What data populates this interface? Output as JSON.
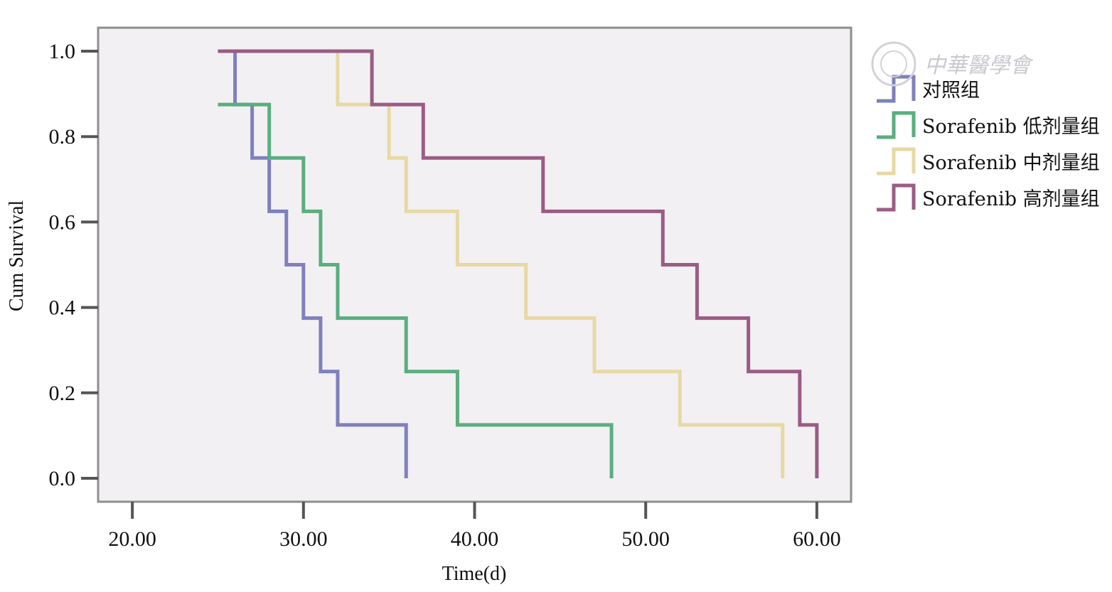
{
  "chart_data": {
    "type": "line",
    "subtype": "step-survival",
    "xlabel": "Time(d)",
    "ylabel": "Cum Survival",
    "xlim": [
      18,
      62
    ],
    "ylim": [
      -0.055,
      1.055
    ],
    "x_ticks": [
      20,
      30,
      40,
      50,
      60
    ],
    "x_tick_labels": [
      "20.00",
      "30.00",
      "40.00",
      "50.00",
      "60.00"
    ],
    "y_ticks": [
      0,
      0.2,
      0.4,
      0.6,
      0.8,
      1.0
    ],
    "y_tick_labels": [
      "0.0",
      "0.2",
      "0.4",
      "0.6",
      "0.8",
      "1.0"
    ],
    "grid": false,
    "legend_position": "right",
    "plot_background": "#f3f0f3",
    "series": [
      {
        "name": "对照组",
        "color": "#7f80bd",
        "x": [
          25,
          26,
          27,
          28,
          29,
          30,
          31,
          32,
          36
        ],
        "y": [
          1.0,
          0.875,
          0.75,
          0.625,
          0.5,
          0.375,
          0.25,
          0.125,
          0.0
        ]
      },
      {
        "name": "Sorafenib 低剂量组",
        "color": "#5aae7f",
        "x": [
          25,
          28,
          30,
          31,
          32,
          36,
          39,
          48
        ],
        "y": [
          0.875,
          0.75,
          0.625,
          0.5,
          0.375,
          0.25,
          0.125,
          0.0
        ]
      },
      {
        "name": "Sorafenib 中剂量组",
        "color": "#e7d9a4",
        "x": [
          32,
          35,
          36,
          39,
          43,
          47,
          52,
          58
        ],
        "y": [
          0.875,
          0.75,
          0.625,
          0.5,
          0.375,
          0.25,
          0.125,
          0.0
        ]
      },
      {
        "name": "Sorafenib 高剂量组",
        "color": "#9b5c84",
        "x": [
          34,
          37,
          44,
          51,
          53,
          56,
          59,
          60
        ],
        "y": [
          0.875,
          0.75,
          0.625,
          0.5,
          0.375,
          0.25,
          0.125,
          0.0
        ]
      }
    ],
    "series_start_x": [
      25,
      25,
      32,
      25
    ],
    "series_start_y": [
      1.0,
      0.875,
      1.0,
      1.0
    ]
  },
  "watermark": {
    "text": "中華醫學會"
  }
}
